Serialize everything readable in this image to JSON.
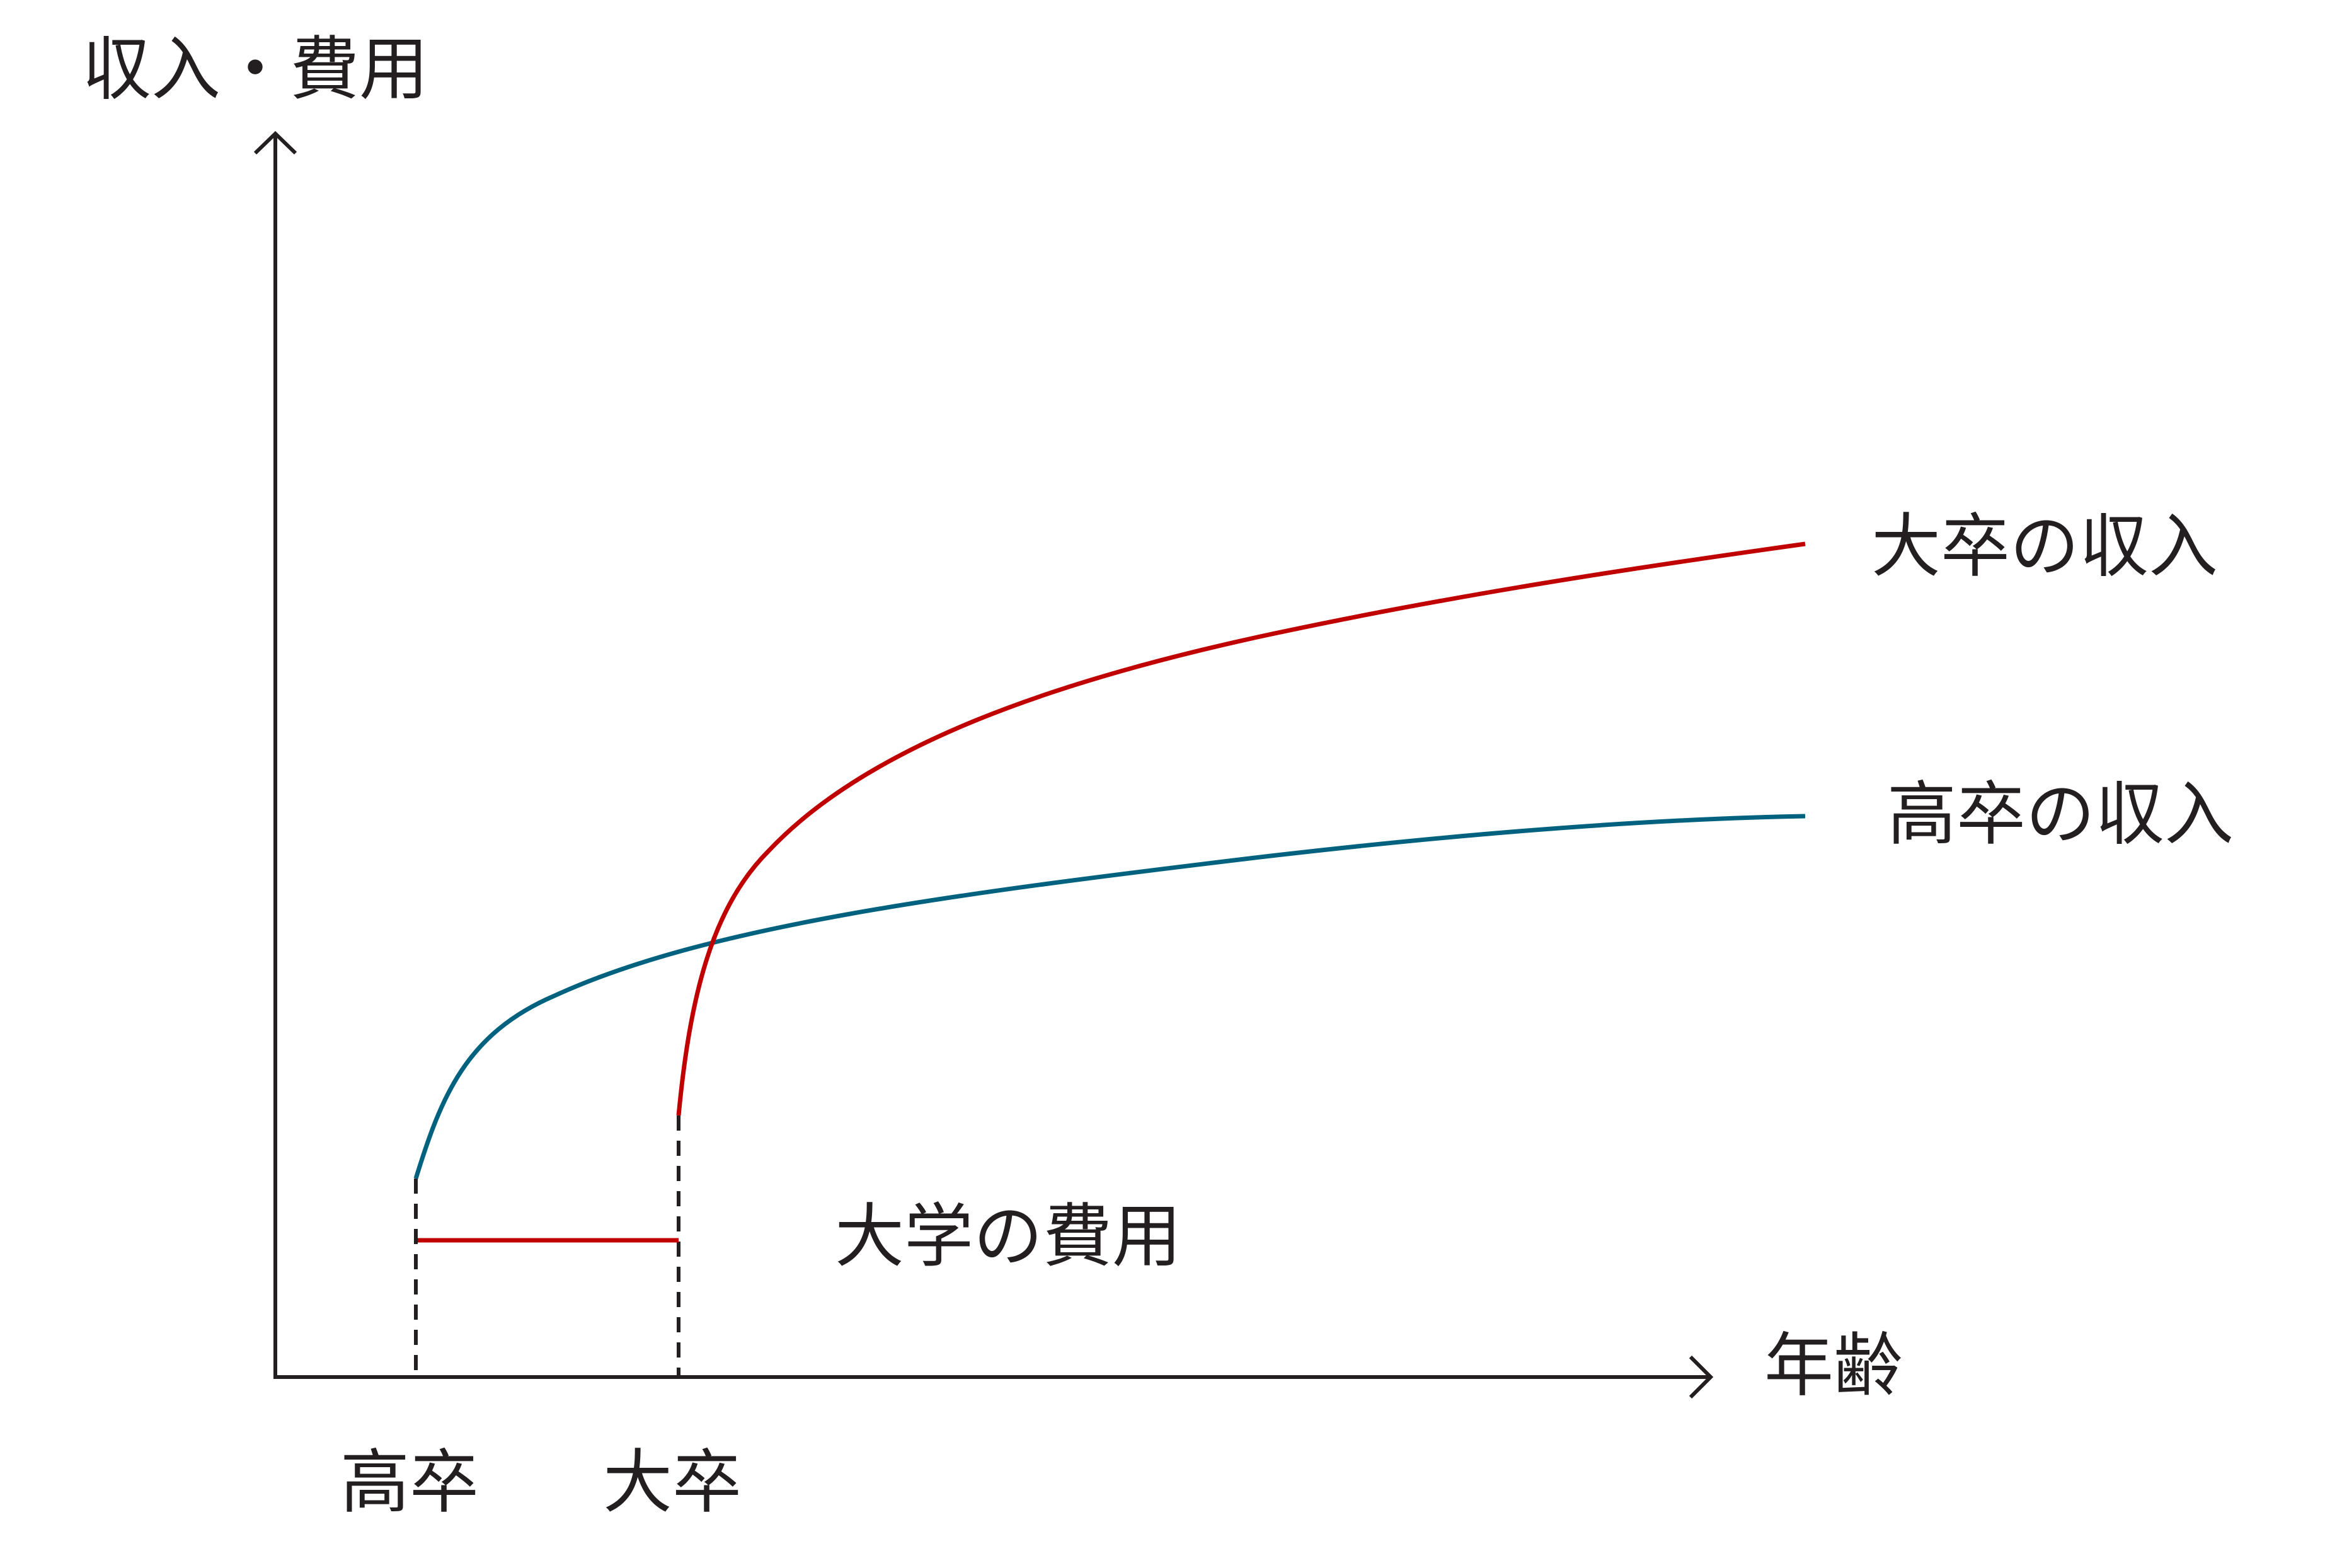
{
  "axes": {
    "y_label": "収入・費用",
    "x_label": "年齢",
    "x_ticks": [
      "高卒",
      "大卒"
    ]
  },
  "curves": {
    "college_income": {
      "label": "大卒の収入",
      "color": "#c00000"
    },
    "highschool_income": {
      "label": "高卒の収入",
      "color": "#00627f"
    },
    "college_cost": {
      "label": "大学の費用",
      "color": "#c00000"
    }
  },
  "colors": {
    "axis": "#231f20",
    "guide": "#231f20"
  }
}
